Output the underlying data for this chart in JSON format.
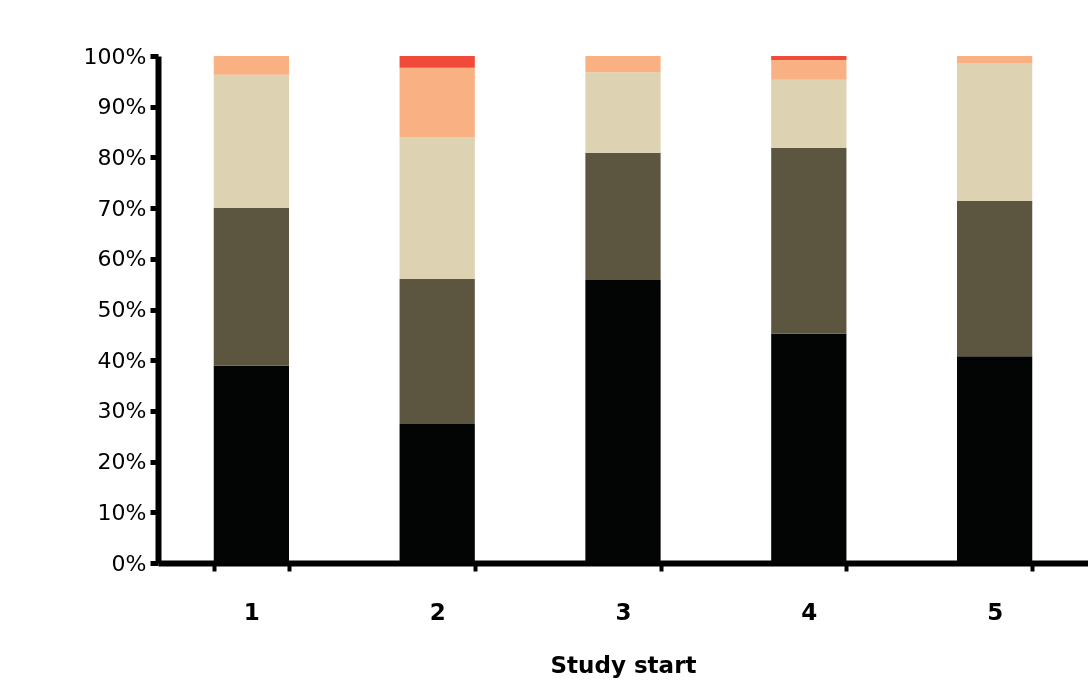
{
  "chart_data": {
    "type": "bar",
    "stacked": true,
    "xlabel": "Study start",
    "categories": [
      "1",
      "2",
      "3",
      "4",
      "5"
    ],
    "series": [
      {
        "color": "#030504",
        "values": [
          38.9,
          27.4,
          55.8,
          45.2,
          40.8
        ]
      },
      {
        "color": "#5c5641",
        "values": [
          31.1,
          28.6,
          25.1,
          36.7,
          30.6
        ]
      },
      {
        "color": "#ddd3b3",
        "values": [
          26.3,
          28.0,
          15.9,
          13.4,
          27.2
        ]
      },
      {
        "color": "#f9b083",
        "values": [
          3.7,
          13.7,
          3.2,
          3.9,
          1.4
        ]
      },
      {
        "color": "#f04a3a",
        "values": [
          0,
          2.3,
          0,
          0.8,
          0
        ]
      }
    ],
    "ylim": [
      0,
      100
    ],
    "yticks": [
      {
        "value": 0,
        "label": "0%"
      },
      {
        "value": 10,
        "label": "10%"
      },
      {
        "value": 20,
        "label": "20%"
      },
      {
        "value": 30,
        "label": "30%"
      },
      {
        "value": 40,
        "label": "40%"
      },
      {
        "value": 50,
        "label": "50%"
      },
      {
        "value": 60,
        "label": "60%"
      },
      {
        "value": 70,
        "label": "70%"
      },
      {
        "value": 80,
        "label": "80%"
      },
      {
        "value": 90,
        "label": "90%"
      },
      {
        "value": 100,
        "label": "100%"
      }
    ],
    "grid": false,
    "legend": false
  }
}
